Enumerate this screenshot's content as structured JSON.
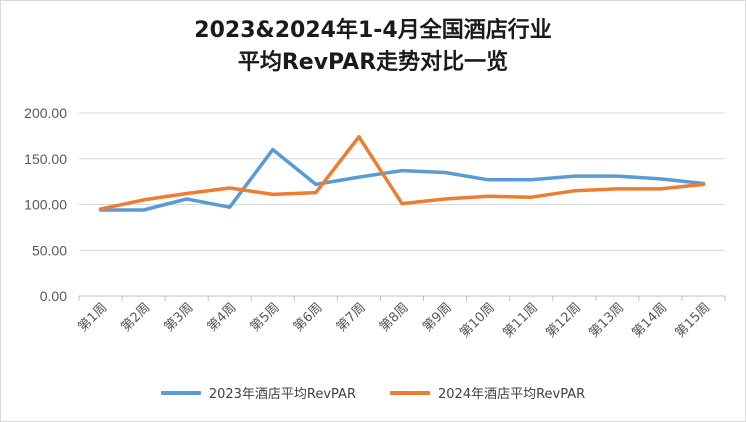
{
  "chart_data": {
    "type": "line",
    "title_line1": "2023&2024年1-4月全国酒店行业",
    "title_line2": "平均RevPAR走势对比一览",
    "categories": [
      "第1周",
      "第2周",
      "第3周",
      "第4周",
      "第5周",
      "第6周",
      "第7周",
      "第8周",
      "第9周",
      "第10周",
      "第11周",
      "第12周",
      "第13周",
      "第14周",
      "第15周"
    ],
    "y_tick_labels": [
      "0.00",
      "50.00",
      "100.00",
      "150.00",
      "200.00"
    ],
    "ylim": [
      0,
      200
    ],
    "grid": true,
    "legend_position": "bottom",
    "series": [
      {
        "name": "2023年酒店平均RevPAR",
        "color": "#5b9bd5",
        "values": [
          94,
          94,
          106,
          97,
          160,
          122,
          130,
          137,
          135,
          127,
          127,
          131,
          131,
          128,
          123
        ]
      },
      {
        "name": "2024年酒店平均RevPAR",
        "color": "#ed7d31",
        "values": [
          95,
          105,
          112,
          118,
          111,
          113,
          174,
          101,
          106,
          109,
          108,
          115,
          117,
          117,
          122
        ]
      }
    ]
  }
}
